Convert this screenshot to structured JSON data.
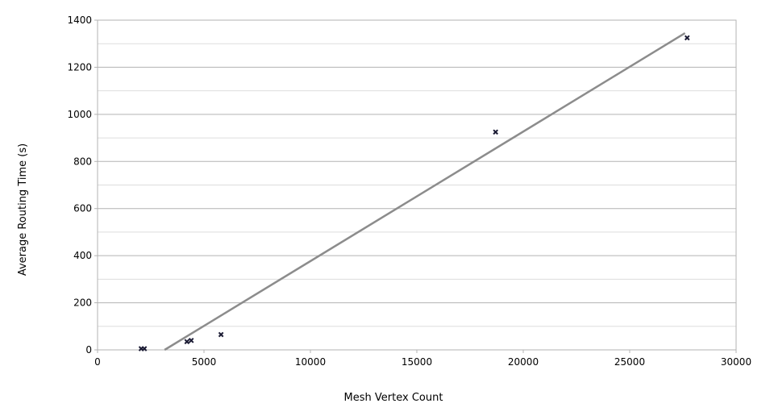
{
  "chart_data": {
    "type": "scatter",
    "title": "",
    "xlabel": "Mesh Vertex Count",
    "ylabel": "Average Routing Time (s)",
    "xlim": [
      0,
      30000
    ],
    "ylim": [
      0,
      1400
    ],
    "x_ticks": [
      0,
      5000,
      10000,
      15000,
      20000,
      25000,
      30000
    ],
    "y_ticks": [
      0,
      200,
      400,
      600,
      800,
      1000,
      1200,
      1400
    ],
    "x_tick_labels": [
      "0",
      "5000",
      "10000",
      "15000",
      "20000",
      "25000",
      "30000"
    ],
    "y_tick_labels": [
      "0",
      "200",
      "400",
      "600",
      "800",
      "1000",
      "1200",
      "1400"
    ],
    "grid": true,
    "legend": "none",
    "series": [
      {
        "points": [
          {
            "x": 2050,
            "y": 5
          },
          {
            "x": 2200,
            "y": 5
          },
          {
            "x": 4200,
            "y": 35
          },
          {
            "x": 4400,
            "y": 40
          },
          {
            "x": 5800,
            "y": 65
          },
          {
            "x": 18700,
            "y": 925
          },
          {
            "x": 27700,
            "y": 1325
          }
        ],
        "marker": "x",
        "color": "#1a1a33"
      }
    ],
    "trendline": {
      "type": "linear",
      "from": {
        "x": 3150,
        "y": 0
      },
      "to": {
        "x": 27600,
        "y": 1345
      },
      "color": "#8c8c8c"
    }
  }
}
